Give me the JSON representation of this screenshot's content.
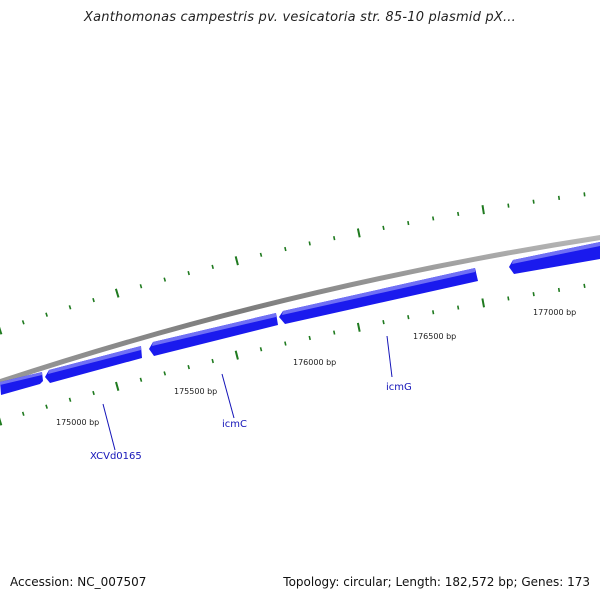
{
  "title": "Xanthomonas campestris pv. vesicatoria str. 85-10 plasmid pX...",
  "footer": {
    "accession": "Accession: NC_007507",
    "summary": "Topology: circular; Length: 182,572 bp; Genes: 173"
  },
  "bp_labels": [
    "175000 bp",
    "175500 bp",
    "176000 bp",
    "176500 bp",
    "177000 bp"
  ],
  "gene_labels": [
    "XCVd0165",
    "icmC",
    "icmG"
  ],
  "colors": {
    "backbone": "#8a8a8a",
    "gene_fill": "#1a1aee",
    "gene_highlight": "#6f6ff5",
    "tick": "#1f7a1f",
    "gene_label": "#1414b8"
  }
}
